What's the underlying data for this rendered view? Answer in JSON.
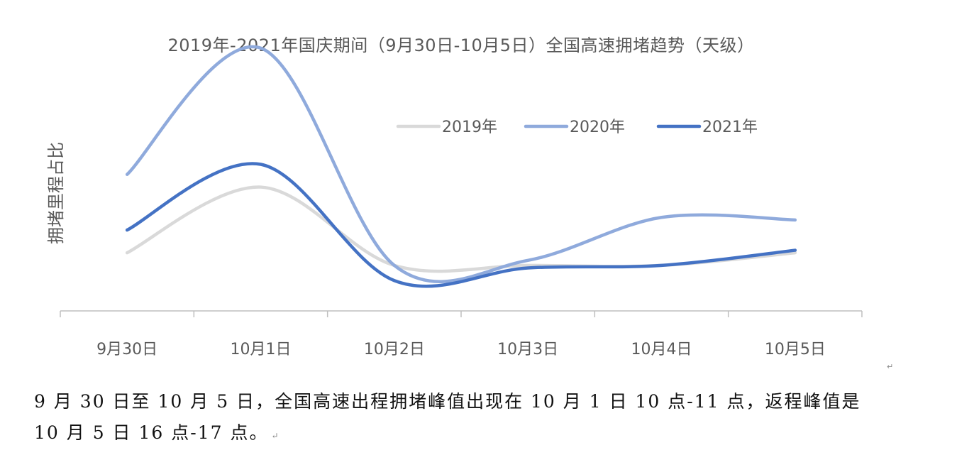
{
  "chart_data": {
    "type": "line",
    "title": "2019年-2021年国庆期间（9月30日-10月5日）全国高速拥堵趋势（天级）",
    "ylabel": "拥堵里程占比",
    "xlabel": "",
    "categories": [
      "9月30日",
      "10月1日",
      "10月2日",
      "10月3日",
      "10月4日",
      "10月5日"
    ],
    "smooth": true,
    "y_axis_labels": false,
    "ylim": [
      0,
      100
    ],
    "legend_position": "top-right",
    "series": [
      {
        "name": "2019年",
        "color": "#d9d9d9",
        "values": [
          23,
          49,
          18,
          18,
          18,
          23
        ]
      },
      {
        "name": "2020年",
        "color": "#8faadc",
        "values": [
          54,
          104,
          18,
          20,
          37,
          36
        ]
      },
      {
        "name": "2021年",
        "color": "#4472c4",
        "values": [
          32,
          58,
          12,
          17,
          18,
          24
        ]
      }
    ]
  },
  "caption": {
    "line1": "9 月 30 日至 10 月 5 日，全国高速出程拥堵峰值出现在 10 月 1 日 10 点-11 点，返程峰值是",
    "line2": "10 月 5 日 16 点-17 点。"
  }
}
